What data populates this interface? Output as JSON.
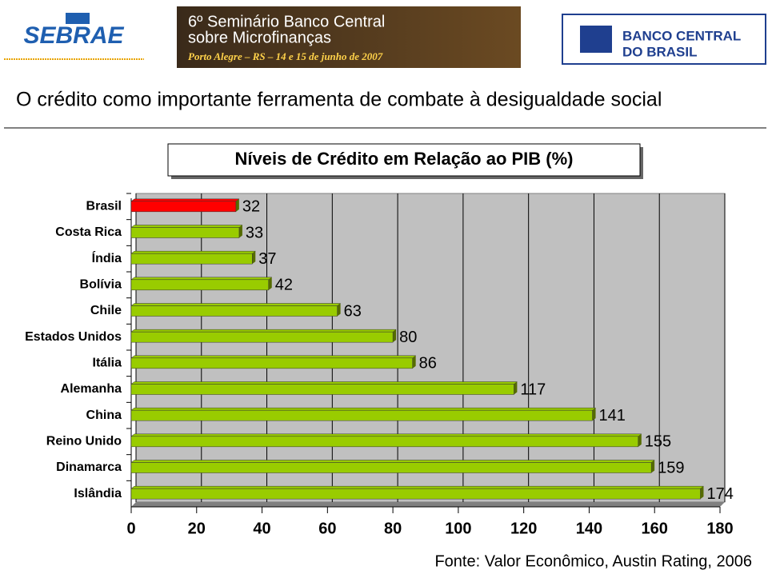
{
  "header": {
    "left_logo": "SEBRAE",
    "banner_line1": "6º Seminário Banco Central",
    "banner_line2": "sobre Microfinanças",
    "banner_line3": "Porto Alegre – RS – 14 e 15 de junho de 2007",
    "right_logo_line1": "BANCO CENTRAL",
    "right_logo_line2": "DO BRASIL"
  },
  "slide_title": "O crédito como importante ferramenta de combate à desigualdade social",
  "chart_data": {
    "type": "bar",
    "orientation": "horizontal",
    "title": "Níveis de Crédito em Relação ao PIB (%)",
    "categories": [
      "Brasil",
      "Costa Rica",
      "Índia",
      "Bolívia",
      "Chile",
      "Estados Unidos",
      "Itália",
      "Alemanha",
      "China",
      "Reino Unido",
      "Dinamarca",
      "Islândia"
    ],
    "values": [
      32,
      33,
      37,
      42,
      63,
      80,
      86,
      117,
      141,
      155,
      159,
      174
    ],
    "colors": [
      "#ff0000",
      "#99cc00",
      "#99cc00",
      "#99cc00",
      "#99cc00",
      "#99cc00",
      "#99cc00",
      "#99cc00",
      "#99cc00",
      "#99cc00",
      "#99cc00",
      "#99cc00"
    ],
    "xlim": [
      0,
      180
    ],
    "xticks": [
      0,
      20,
      40,
      60,
      80,
      100,
      120,
      140,
      160,
      180
    ],
    "grid": true
  },
  "source": "Fonte: Valor Econômico, Austin Rating, 2006"
}
